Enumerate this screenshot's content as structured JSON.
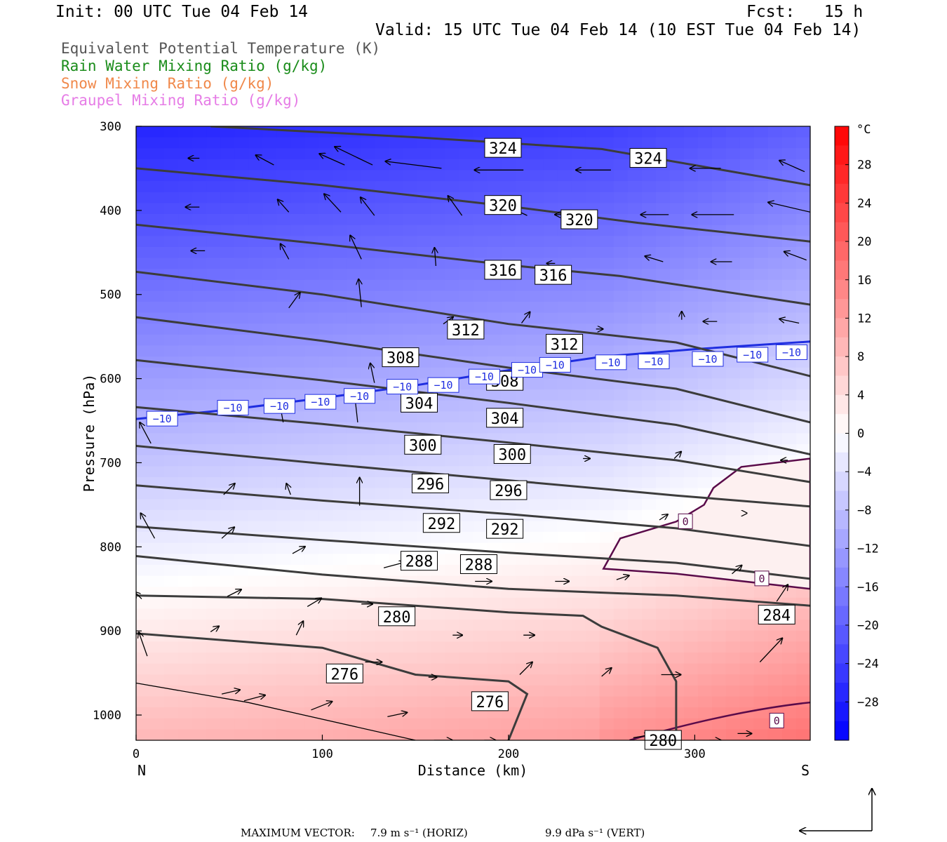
{
  "header": {
    "init": "Init: 00 UTC Tue 04 Feb 14",
    "fcst": "Fcst:   15 h",
    "valid": "Valid: 15 UTC Tue 04 Feb 14 (10 EST Tue 04 Feb 14)"
  },
  "legend": [
    {
      "text": "Equivalent Potential Temperature (K)",
      "color": "#555555"
    },
    {
      "text": "Rain Water Mixing Ratio (g/kg)",
      "color": "#1a8c1a"
    },
    {
      "text": "Snow Mixing Ratio (g/kg)",
      "color": "#f0884a"
    },
    {
      "text": "Graupel Mixing Ratio (g/kg)",
      "color": "#e67ce6"
    }
  ],
  "footer": {
    "max_label": "MAXIMUM VECTOR:",
    "horiz": "7.9 m s⁻¹ (HORIZ)",
    "vert": "9.9 dPa s⁻¹ (VERT)"
  },
  "chart_data": {
    "type": "heatmap",
    "xlabel": "Distance (km)",
    "ylabel": "Pressure (hPa)",
    "xlim": [
      0,
      362
    ],
    "ylim": [
      1030,
      300
    ],
    "x_ticks": [
      0,
      100,
      200,
      300
    ],
    "y_ticks": [
      300,
      400,
      500,
      600,
      700,
      800,
      900,
      1000
    ],
    "x_end_labels": {
      "left": "N",
      "right": "S"
    },
    "colorbar": {
      "unit": "°C",
      "tick_labels": [
        28,
        24,
        20,
        16,
        12,
        8,
        4,
        0,
        -4,
        -8,
        -12,
        -16,
        -20,
        -24,
        -28
      ],
      "levels_top_to_bottom": [
        32,
        30,
        28,
        26,
        24,
        22,
        20,
        18,
        16,
        14,
        12,
        10,
        8,
        6,
        4,
        2,
        0,
        -2,
        -4,
        -6,
        -8,
        -10,
        -12,
        -14,
        -16,
        -18,
        -20,
        -22,
        -24,
        -26,
        -28,
        -30,
        -32
      ]
    },
    "theta_e_contours": [
      {
        "value": 324,
        "points": [
          [
            40,
            300
          ],
          [
            150,
            313
          ],
          [
            250,
            327
          ],
          [
            362,
            370
          ]
        ]
      },
      {
        "value": 320,
        "points": [
          [
            0,
            350
          ],
          [
            100,
            370
          ],
          [
            200,
            395
          ],
          [
            270,
            415
          ],
          [
            362,
            437
          ]
        ]
      },
      {
        "value": 316,
        "points": [
          [
            0,
            417
          ],
          [
            100,
            440
          ],
          [
            200,
            465
          ],
          [
            260,
            478
          ],
          [
            362,
            512
          ]
        ]
      },
      {
        "value": 312,
        "points": [
          [
            0,
            473
          ],
          [
            100,
            500
          ],
          [
            200,
            535
          ],
          [
            290,
            557
          ],
          [
            362,
            597
          ]
        ]
      },
      {
        "value": 308,
        "points": [
          [
            0,
            527
          ],
          [
            100,
            555
          ],
          [
            200,
            587
          ],
          [
            290,
            612
          ],
          [
            362,
            652
          ]
        ]
      },
      {
        "value": 304,
        "points": [
          [
            0,
            578
          ],
          [
            100,
            602
          ],
          [
            200,
            629
          ],
          [
            290,
            655
          ],
          [
            362,
            690
          ]
        ]
      },
      {
        "value": 300,
        "points": [
          [
            0,
            634
          ],
          [
            100,
            654
          ],
          [
            200,
            676
          ],
          [
            290,
            697
          ],
          [
            362,
            723
          ]
        ]
      },
      {
        "value": 296,
        "points": [
          [
            0,
            680
          ],
          [
            100,
            701
          ],
          [
            200,
            721
          ],
          [
            290,
            739
          ],
          [
            362,
            752
          ]
        ]
      },
      {
        "value": 292,
        "points": [
          [
            0,
            727
          ],
          [
            100,
            745
          ],
          [
            200,
            761
          ],
          [
            290,
            778
          ],
          [
            362,
            799
          ]
        ]
      },
      {
        "value": 288,
        "points": [
          [
            0,
            776
          ],
          [
            100,
            792
          ],
          [
            200,
            807
          ],
          [
            290,
            819
          ],
          [
            362,
            838
          ]
        ]
      },
      {
        "value": 284,
        "points": [
          [
            0,
            811
          ],
          [
            100,
            833
          ],
          [
            200,
            850
          ],
          [
            290,
            858
          ],
          [
            362,
            870
          ]
        ]
      },
      {
        "value": 280,
        "points": [
          [
            0,
            858
          ],
          [
            100,
            862
          ],
          [
            150,
            870
          ],
          [
            200,
            878
          ],
          [
            240,
            882
          ],
          [
            250,
            895
          ],
          [
            280,
            920
          ],
          [
            290,
            960
          ],
          [
            290,
            1030
          ]
        ]
      },
      {
        "value": 276,
        "points": [
          [
            0,
            903
          ],
          [
            100,
            920
          ],
          [
            150,
            952
          ],
          [
            200,
            960
          ],
          [
            210,
            975
          ],
          [
            200,
            1030
          ]
        ]
      }
    ],
    "theta_e_labels": [
      {
        "value": 324,
        "x": 197,
        "p": 326
      },
      {
        "value": 324,
        "x": 275,
        "p": 338
      },
      {
        "value": 320,
        "x": 197,
        "p": 394
      },
      {
        "value": 320,
        "x": 238,
        "p": 411
      },
      {
        "value": 316,
        "x": 197,
        "p": 471
      },
      {
        "value": 316,
        "x": 224,
        "p": 477
      },
      {
        "value": 312,
        "x": 177,
        "p": 542
      },
      {
        "value": 312,
        "x": 230,
        "p": 559
      },
      {
        "value": 308,
        "x": 142,
        "p": 575
      },
      {
        "value": 308,
        "x": 198,
        "p": 603
      },
      {
        "value": 304,
        "x": 152,
        "p": 629
      },
      {
        "value": 304,
        "x": 198,
        "p": 647
      },
      {
        "value": 300,
        "x": 154,
        "p": 679
      },
      {
        "value": 300,
        "x": 202,
        "p": 690
      },
      {
        "value": 296,
        "x": 158,
        "p": 725
      },
      {
        "value": 296,
        "x": 200,
        "p": 733
      },
      {
        "value": 292,
        "x": 164,
        "p": 772
      },
      {
        "value": 292,
        "x": 198,
        "p": 779
      },
      {
        "value": 288,
        "x": 152,
        "p": 817
      },
      {
        "value": 288,
        "x": 184,
        "p": 821
      },
      {
        "value": 284,
        "x": 344,
        "p": 881
      },
      {
        "value": 280,
        "x": 140,
        "p": 883
      },
      {
        "value": 280,
        "x": 283,
        "p": 1030
      },
      {
        "value": 276,
        "x": 112,
        "p": 951
      },
      {
        "value": 276,
        "x": 190,
        "p": 984
      }
    ],
    "minus10_isotherm": {
      "points": [
        [
          0,
          648
        ],
        [
          50,
          637
        ],
        [
          100,
          623
        ],
        [
          150,
          608
        ],
        [
          200,
          590
        ],
        [
          250,
          574
        ],
        [
          300,
          565
        ],
        [
          362,
          556
        ]
      ],
      "labels": [
        [
          14,
          648
        ],
        [
          52,
          635
        ],
        [
          77,
          633
        ],
        [
          99,
          628
        ],
        [
          120,
          621
        ],
        [
          143,
          610
        ],
        [
          165,
          608
        ],
        [
          187,
          598
        ],
        [
          210,
          590
        ],
        [
          225,
          584
        ],
        [
          255,
          581
        ],
        [
          278,
          580
        ],
        [
          307,
          577
        ],
        [
          331,
          572
        ],
        [
          352,
          569
        ]
      ]
    },
    "zero_isotherm": {
      "points": [
        [
          251,
          826
        ],
        [
          260,
          790
        ],
        [
          290,
          770
        ],
        [
          305,
          750
        ],
        [
          310,
          730
        ],
        [
          325,
          705
        ],
        [
          362,
          695
        ]
      ],
      "labels": [
        [
          295,
          770
        ],
        [
          336,
          838
        ],
        [
          344,
          1007
        ]
      ]
    },
    "wind_vectors": [
      [
        34,
        338,
        -8,
        0
      ],
      [
        74,
        346,
        -13,
        -7
      ],
      [
        112,
        346,
        -18,
        -8
      ],
      [
        127,
        346,
        -27,
        -13
      ],
      [
        164,
        350,
        -40,
        -5
      ],
      [
        208,
        352,
        -35,
        0
      ],
      [
        255,
        352,
        -25,
        0
      ],
      [
        314,
        350,
        -22,
        0
      ],
      [
        359,
        354,
        -18,
        -8
      ],
      [
        34,
        396,
        -10,
        0
      ],
      [
        82,
        402,
        -8,
        -9
      ],
      [
        110,
        402,
        -12,
        -13
      ],
      [
        128,
        406,
        -10,
        -13
      ],
      [
        175,
        406,
        -10,
        -14
      ],
      [
        210,
        406,
        -15,
        -7
      ],
      [
        240,
        405,
        -20,
        0
      ],
      [
        286,
        405,
        -20,
        0
      ],
      [
        321,
        405,
        -30,
        0
      ],
      [
        362,
        402,
        -30,
        -7
      ],
      [
        37,
        448,
        -10,
        0
      ],
      [
        82,
        458,
        -6,
        -11
      ],
      [
        121,
        458,
        -8,
        -17
      ],
      [
        161,
        466,
        -1,
        -13
      ],
      [
        225,
        463,
        -6,
        0
      ],
      [
        283,
        461,
        -13,
        -4
      ],
      [
        320,
        461,
        -15,
        0
      ],
      [
        360,
        459,
        -16,
        -6
      ],
      [
        82,
        516,
        8,
        -11
      ],
      [
        121,
        515,
        -2,
        -20
      ],
      [
        165,
        535,
        7,
        -5
      ],
      [
        207,
        534,
        6,
        -8
      ],
      [
        247,
        541,
        5,
        0
      ],
      [
        293,
        530,
        0,
        -6
      ],
      [
        312,
        532,
        -10,
        0
      ],
      [
        356,
        534,
        -14,
        -3
      ],
      [
        128,
        605,
        -3,
        -14
      ],
      [
        79,
        652,
        -2,
        -11
      ],
      [
        119,
        652,
        -2,
        -18
      ],
      [
        160,
        684,
        -5,
        0
      ],
      [
        240,
        695,
        5,
        0
      ],
      [
        289,
        695,
        5,
        -5
      ],
      [
        350,
        697,
        -5,
        0
      ],
      [
        8,
        677,
        -8,
        -15
      ],
      [
        47,
        738,
        8,
        -8
      ],
      [
        83,
        738,
        -3,
        -8
      ],
      [
        120,
        751,
        0,
        -20
      ],
      [
        162,
        773,
        -5,
        0
      ],
      [
        281,
        768,
        6,
        -4
      ],
      [
        328,
        760,
        0,
        0
      ],
      [
        10,
        790,
        -10,
        -18
      ],
      [
        46,
        790,
        9,
        -8
      ],
      [
        84,
        808,
        9,
        -5
      ],
      [
        133,
        825,
        15,
        -4
      ],
      [
        182,
        841,
        12,
        0
      ],
      [
        225,
        841,
        10,
        0
      ],
      [
        258,
        839,
        9,
        -3
      ],
      [
        320,
        832,
        7,
        -6
      ],
      [
        3,
        862,
        -5,
        -5
      ],
      [
        49,
        859,
        10,
        -5
      ],
      [
        92,
        871,
        10,
        -6
      ],
      [
        121,
        868,
        8,
        0
      ],
      [
        170,
        905,
        7,
        0
      ],
      [
        208,
        905,
        8,
        0
      ],
      [
        344,
        865,
        8,
        -12
      ],
      [
        40,
        901,
        6,
        -4
      ],
      [
        86,
        905,
        5,
        -10
      ],
      [
        123,
        937,
        12,
        0
      ],
      [
        157,
        955,
        6,
        0
      ],
      [
        206,
        952,
        9,
        -9
      ],
      [
        250,
        954,
        7,
        -6
      ],
      [
        282,
        952,
        14,
        0
      ],
      [
        335,
        937,
        16,
        -17
      ],
      [
        6,
        930,
        -6,
        -17
      ],
      [
        46,
        975,
        13,
        -3
      ],
      [
        58,
        983,
        15,
        -4
      ],
      [
        94,
        994,
        15,
        -6
      ],
      [
        135,
        1002,
        14,
        -3
      ],
      [
        160,
        1030,
        13,
        0
      ],
      [
        187,
        1030,
        8,
        0
      ],
      [
        267,
        1027,
        12,
        -2
      ],
      [
        308,
        1030,
        8,
        0
      ],
      [
        323,
        1022,
        10,
        0
      ]
    ],
    "ref_vector": {
      "horiz_ms": 7.9,
      "vert_dpas": 9.9
    }
  }
}
